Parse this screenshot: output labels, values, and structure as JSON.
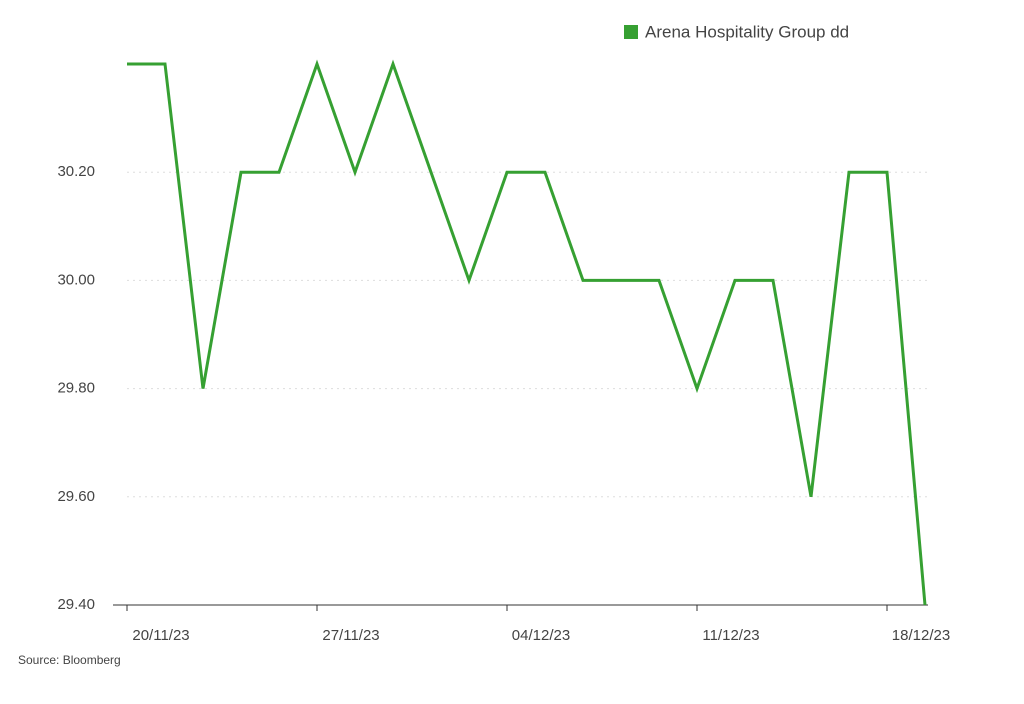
{
  "chart_data": {
    "type": "line",
    "source": "Source: Bloomberg",
    "categories": [
      "20/11/23",
      null,
      null,
      null,
      null,
      "27/11/23",
      null,
      null,
      null,
      null,
      "04/12/23",
      null,
      null,
      null,
      null,
      "11/12/23",
      null,
      null,
      null,
      null,
      "18/12/23",
      null
    ],
    "series": [
      {
        "name": "Arena Hospitality Group dd",
        "color": "#36a032",
        "values": [
          30.4,
          30.4,
          29.8,
          30.2,
          30.2,
          30.4,
          30.2,
          30.4,
          30.2,
          30.0,
          30.2,
          30.2,
          30.0,
          30.0,
          30.0,
          29.8,
          30.0,
          30.0,
          29.6,
          30.2,
          30.2,
          29.4
        ]
      }
    ],
    "ylim": [
      29.4,
      30.4
    ],
    "yticks": [
      {
        "value": 29.4,
        "label": "29.40"
      },
      {
        "value": 29.6,
        "label": "29.60"
      },
      {
        "value": 29.8,
        "label": "29.80"
      },
      {
        "value": 30.0,
        "label": "30.00"
      },
      {
        "value": 30.2,
        "label": "30.20"
      }
    ],
    "grid": true,
    "legend": "top-right"
  }
}
